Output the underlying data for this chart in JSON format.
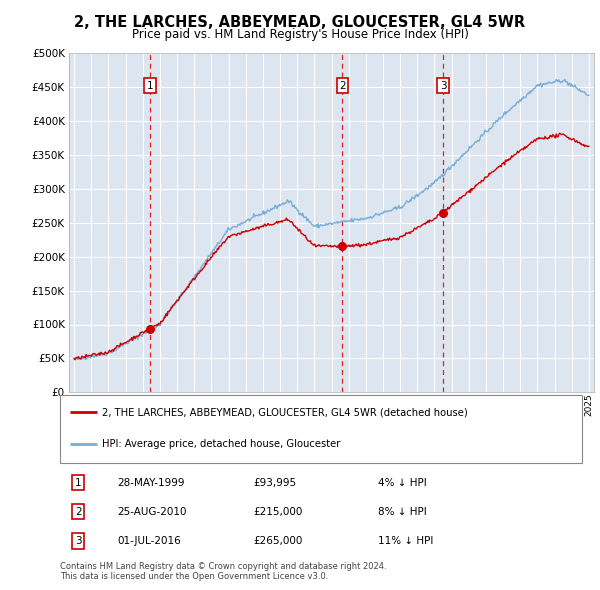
{
  "title": "2, THE LARCHES, ABBEYMEAD, GLOUCESTER, GL4 5WR",
  "subtitle": "Price paid vs. HM Land Registry's House Price Index (HPI)",
  "plot_background": "#dde6f0",
  "red_line_color": "#cc0000",
  "blue_line_color": "#7aaed6",
  "grid_color": "#ffffff",
  "sale_prices": [
    93995,
    215000,
    265000
  ],
  "sale_labels": [
    "1",
    "2",
    "3"
  ],
  "sale_year_floats": [
    1999.41,
    2010.64,
    2016.5
  ],
  "sale_date_strs": [
    "28-MAY-1999",
    "25-AUG-2010",
    "01-JUL-2016"
  ],
  "sale_price_strs": [
    "£93,995",
    "£215,000",
    "£265,000"
  ],
  "sale_hpi_strs": [
    "4% ↓ HPI",
    "8% ↓ HPI",
    "11% ↓ HPI"
  ],
  "legend_house_label": "2, THE LARCHES, ABBEYMEAD, GLOUCESTER, GL4 5WR (detached house)",
  "legend_hpi_label": "HPI: Average price, detached house, Gloucester",
  "footer": "Contains HM Land Registry data © Crown copyright and database right 2024.\nThis data is licensed under the Open Government Licence v3.0.",
  "ylim": [
    0,
    500000
  ],
  "yticks": [
    0,
    50000,
    100000,
    150000,
    200000,
    250000,
    300000,
    350000,
    400000,
    450000,
    500000
  ],
  "xlim_left": 1994.7,
  "xlim_right": 2025.3,
  "x_start_year": 1995,
  "x_end_year": 2025
}
